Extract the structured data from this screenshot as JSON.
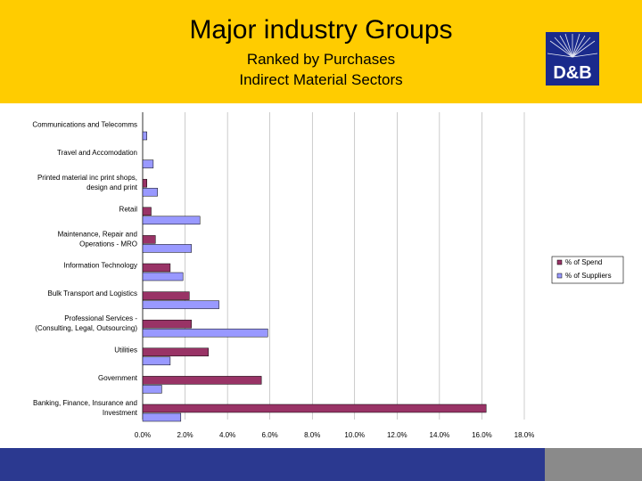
{
  "header": {
    "title": "Major industry Groups",
    "subtitle_line1": "Ranked by Purchases",
    "subtitle_line2": "Indirect Material Sectors",
    "logo_text": "D&B"
  },
  "colors": {
    "header_bg": "#FFCC00",
    "footer_blue": "#2B3990",
    "footer_gray": "#8A8A8A",
    "spend": "#993366",
    "suppliers": "#9999FF"
  },
  "chart_data": {
    "type": "bar",
    "orientation": "horizontal",
    "title": "",
    "xlabel": "",
    "ylabel": "",
    "xlim": [
      0,
      18
    ],
    "grid": true,
    "legend_position": "right",
    "x_ticks": [
      "0.0%",
      "2.0%",
      "4.0%",
      "6.0%",
      "8.0%",
      "10.0%",
      "12.0%",
      "14.0%",
      "16.0%",
      "18.0%"
    ],
    "categories": [
      [
        "Communications and Telecomms"
      ],
      [
        "Travel and Accomodation"
      ],
      [
        "Printed material  inc print shops,",
        "design and print"
      ],
      [
        "Retail"
      ],
      [
        "Maintenance, Repair and",
        "Operations - MRO"
      ],
      [
        "Information Technology"
      ],
      [
        "Bulk Transport and Logistics"
      ],
      [
        "Professional Services -",
        "(Consulting, Legal, Outsourcing)"
      ],
      [
        "Utilities"
      ],
      [
        "Government"
      ],
      [
        "Banking, Finance, Insurance and",
        "Investment"
      ]
    ],
    "series": [
      {
        "name": "% of Spend",
        "values": [
          0.0,
          0.0,
          0.2,
          0.4,
          0.6,
          1.3,
          2.2,
          2.3,
          3.1,
          5.6,
          16.2
        ]
      },
      {
        "name": "% of Suppliers",
        "values": [
          0.2,
          0.5,
          0.7,
          2.7,
          2.3,
          1.9,
          3.6,
          5.9,
          1.3,
          0.9,
          1.8
        ]
      }
    ]
  }
}
